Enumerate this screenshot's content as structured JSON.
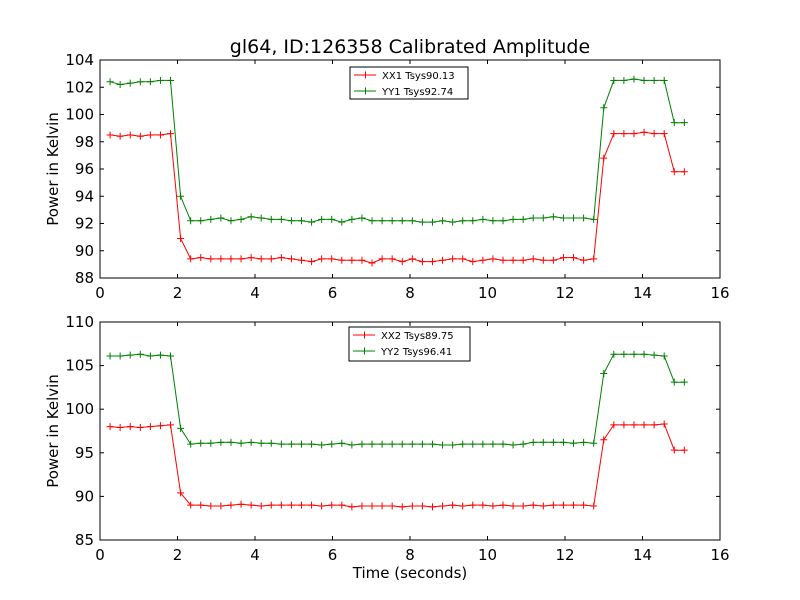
{
  "figure": {
    "title": "gl64, ID:126358 Calibrated Amplitude"
  },
  "chart_data": [
    {
      "type": "line",
      "title": "gl64, ID:126358 Calibrated Amplitude",
      "xlabel": "",
      "ylabel": "Power in Kelvin",
      "xlim": [
        0,
        16
      ],
      "ylim": [
        88,
        104
      ],
      "xticks": [
        0,
        2,
        4,
        6,
        8,
        10,
        12,
        14,
        16
      ],
      "yticks": [
        88,
        90,
        92,
        94,
        96,
        98,
        100,
        102,
        104
      ],
      "grid": false,
      "legend": "top-center",
      "x": [
        0.26,
        0.52,
        0.78,
        1.04,
        1.3,
        1.56,
        1.82,
        2.08,
        2.34,
        2.6,
        2.86,
        3.12,
        3.38,
        3.64,
        3.9,
        4.16,
        4.42,
        4.68,
        4.94,
        5.2,
        5.46,
        5.72,
        5.98,
        6.24,
        6.5,
        6.76,
        7.02,
        7.28,
        7.54,
        7.8,
        8.06,
        8.32,
        8.58,
        8.84,
        9.1,
        9.36,
        9.62,
        9.88,
        10.14,
        10.4,
        10.66,
        10.92,
        11.18,
        11.44,
        11.7,
        11.96,
        12.22,
        12.48,
        12.74,
        13.0,
        13.26,
        13.52,
        13.78,
        14.04,
        14.3,
        14.56,
        14.82,
        15.08
      ],
      "series": [
        {
          "name": "XX1 Tsys90.13",
          "color": "#ff0000",
          "values": [
            98.5,
            98.4,
            98.5,
            98.4,
            98.5,
            98.5,
            98.6,
            90.9,
            89.4,
            89.5,
            89.4,
            89.4,
            89.4,
            89.4,
            89.5,
            89.4,
            89.4,
            89.5,
            89.4,
            89.3,
            89.2,
            89.4,
            89.4,
            89.3,
            89.3,
            89.3,
            89.1,
            89.4,
            89.4,
            89.2,
            89.4,
            89.2,
            89.2,
            89.3,
            89.4,
            89.4,
            89.2,
            89.3,
            89.4,
            89.3,
            89.3,
            89.3,
            89.4,
            89.3,
            89.3,
            89.5,
            89.5,
            89.3,
            89.4,
            96.8,
            98.6,
            98.6,
            98.6,
            98.7,
            98.6,
            98.6,
            95.8,
            95.8
          ]
        },
        {
          "name": "YY1 Tsys92.74",
          "color": "#008000",
          "values": [
            102.4,
            102.2,
            102.3,
            102.4,
            102.4,
            102.5,
            102.5,
            94.0,
            92.2,
            92.2,
            92.3,
            92.4,
            92.2,
            92.3,
            92.5,
            92.4,
            92.3,
            92.3,
            92.2,
            92.2,
            92.1,
            92.3,
            92.3,
            92.1,
            92.3,
            92.4,
            92.2,
            92.2,
            92.2,
            92.2,
            92.2,
            92.1,
            92.1,
            92.2,
            92.1,
            92.2,
            92.2,
            92.3,
            92.2,
            92.2,
            92.3,
            92.3,
            92.4,
            92.4,
            92.5,
            92.4,
            92.4,
            92.4,
            92.3,
            100.5,
            102.5,
            102.5,
            102.6,
            102.5,
            102.5,
            102.5,
            99.4,
            99.4
          ]
        }
      ]
    },
    {
      "type": "line",
      "title": "",
      "xlabel": "Time (seconds)",
      "ylabel": "Power in Kelvin",
      "xlim": [
        0,
        16
      ],
      "ylim": [
        85,
        110
      ],
      "xticks": [
        0,
        2,
        4,
        6,
        8,
        10,
        12,
        14,
        16
      ],
      "yticks": [
        85,
        90,
        95,
        100,
        105,
        110
      ],
      "grid": false,
      "legend": "top-center",
      "x": [
        0.26,
        0.52,
        0.78,
        1.04,
        1.3,
        1.56,
        1.82,
        2.08,
        2.34,
        2.6,
        2.86,
        3.12,
        3.38,
        3.64,
        3.9,
        4.16,
        4.42,
        4.68,
        4.94,
        5.2,
        5.46,
        5.72,
        5.98,
        6.24,
        6.5,
        6.76,
        7.02,
        7.28,
        7.54,
        7.8,
        8.06,
        8.32,
        8.58,
        8.84,
        9.1,
        9.36,
        9.62,
        9.88,
        10.14,
        10.4,
        10.66,
        10.92,
        11.18,
        11.44,
        11.7,
        11.96,
        12.22,
        12.48,
        12.74,
        13.0,
        13.26,
        13.52,
        13.78,
        14.04,
        14.3,
        14.56,
        14.82,
        15.08
      ],
      "series": [
        {
          "name": "XX2 Tsys89.75",
          "color": "#ff0000",
          "values": [
            98.0,
            97.9,
            98.0,
            97.9,
            98.0,
            98.1,
            98.2,
            90.4,
            89.0,
            89.0,
            88.9,
            88.9,
            89.0,
            89.1,
            89.0,
            88.9,
            89.0,
            89.0,
            89.0,
            89.0,
            89.0,
            88.9,
            89.0,
            89.0,
            88.8,
            88.9,
            88.9,
            88.9,
            88.9,
            88.8,
            88.9,
            88.9,
            88.8,
            88.9,
            89.0,
            88.9,
            89.0,
            89.0,
            88.9,
            89.0,
            88.9,
            88.9,
            89.0,
            88.9,
            89.0,
            89.0,
            89.0,
            89.0,
            88.9,
            96.5,
            98.2,
            98.2,
            98.2,
            98.2,
            98.2,
            98.3,
            95.3,
            95.3
          ]
        },
        {
          "name": "YY2 Tsys96.41",
          "color": "#008000",
          "values": [
            106.1,
            106.1,
            106.2,
            106.3,
            106.1,
            106.2,
            106.1,
            97.8,
            96.0,
            96.1,
            96.1,
            96.2,
            96.2,
            96.1,
            96.2,
            96.1,
            96.1,
            96.0,
            96.0,
            96.0,
            96.0,
            95.9,
            96.0,
            96.1,
            95.9,
            96.0,
            96.0,
            96.0,
            96.0,
            96.0,
            96.0,
            96.0,
            96.0,
            95.9,
            95.9,
            96.0,
            96.0,
            96.0,
            96.0,
            96.0,
            95.9,
            96.0,
            96.2,
            96.2,
            96.2,
            96.2,
            96.1,
            96.2,
            96.1,
            104.1,
            106.3,
            106.3,
            106.3,
            106.3,
            106.2,
            106.1,
            103.1,
            103.1
          ]
        }
      ]
    }
  ]
}
